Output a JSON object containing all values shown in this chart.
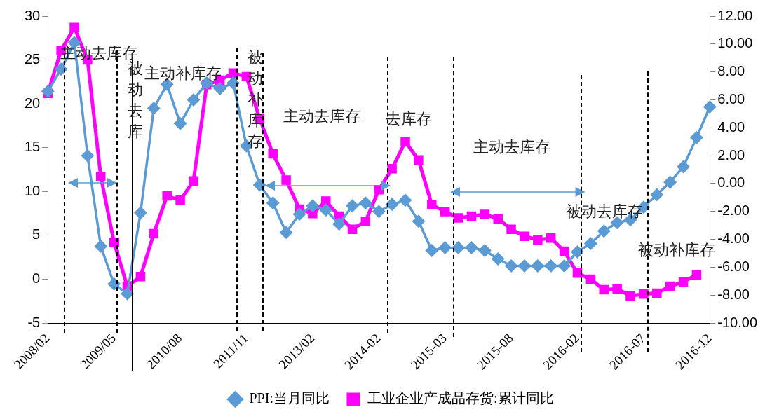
{
  "chart_data": {
    "type": "line",
    "categories": [
      "2008/02",
      null,
      null,
      null,
      null,
      "2009/05",
      null,
      null,
      null,
      null,
      "2010/08",
      null,
      null,
      null,
      null,
      "2011/11",
      null,
      null,
      null,
      null,
      "2013/02",
      null,
      null,
      null,
      null,
      "2014-02",
      null,
      null,
      null,
      null,
      "2015-03",
      null,
      null,
      null,
      null,
      "2015-08",
      null,
      null,
      null,
      null,
      "2016-02",
      null,
      null,
      null,
      null,
      "2016-07",
      null,
      null,
      null,
      null,
      "2016-12"
    ],
    "series": [
      {
        "name": "工业企业产成品存货:累计同比",
        "color": "#ff00ff",
        "marker": "square",
        "values": [
          21.2,
          26.1,
          28.7,
          25.0,
          11.7,
          4.2,
          -0.8,
          0.3,
          5.2,
          9.5,
          9.0,
          11.2,
          22.2,
          22.7,
          23.5,
          23.1,
          18.3,
          14.3,
          11.3,
          8.0,
          7.5,
          8.9,
          7.2,
          5.7,
          6.6,
          10.2,
          12.6,
          15.7,
          13.6,
          8.5,
          7.7,
          7.0,
          7.2,
          7.4,
          6.9,
          5.7,
          4.9,
          4.5,
          4.7,
          3.2,
          0.7,
          0.0,
          -1.2,
          -1.1,
          -1.9,
          -1.7,
          -1.6,
          -0.8,
          -0.3,
          0.5,
          null
        ]
      },
      {
        "name": "PPI:当月同比",
        "color": "#5b9bd5",
        "marker": "diamond",
        "axis": "y2",
        "values": [
          6.6,
          8.2,
          10.1,
          2.0,
          -4.5,
          -7.2,
          -7.9,
          -2.1,
          5.4,
          7.1,
          4.3,
          6.0,
          7.2,
          6.8,
          7.2,
          2.7,
          -0.1,
          -1.4,
          -3.5,
          -2.2,
          -1.6,
          -1.9,
          -2.9,
          -1.6,
          -1.4,
          -2.0,
          -1.5,
          -1.2,
          -2.7,
          -4.8,
          -4.6,
          -4.6,
          -4.6,
          -4.8,
          -5.4,
          -5.9,
          -5.9,
          -5.9,
          -5.9,
          -5.9,
          -4.9,
          -4.3,
          -3.4,
          -2.8,
          -2.6,
          -1.7,
          -0.8,
          0.1,
          1.2,
          3.3,
          5.5
        ]
      }
    ],
    "ylim": [
      -5,
      30
    ],
    "yticks": [
      -5,
      0,
      5,
      10,
      15,
      20,
      25,
      30
    ],
    "y2lim": [
      -10,
      12
    ],
    "y2ticks": [
      {
        "value": -10,
        "label": "-10.00"
      },
      {
        "value": -8,
        "label": "-8.00"
      },
      {
        "value": -6,
        "label": "-6.00"
      },
      {
        "value": -4,
        "label": "-4.00"
      },
      {
        "value": -2,
        "label": "-2.00"
      },
      {
        "value": 0,
        "label": "0.00"
      },
      {
        "value": 2,
        "label": "2.00"
      },
      {
        "value": 4,
        "label": "4.00"
      },
      {
        "value": 6,
        "label": "6.00"
      },
      {
        "value": 8,
        "label": "8.00"
      },
      {
        "value": 10,
        "label": "10.00"
      },
      {
        "value": 12,
        "label": "12.00"
      }
    ],
    "grid": false,
    "legend": "bottom",
    "annotations": [
      "主动去库存",
      "被动去库",
      "主动补库存",
      "被动补库存",
      "主动去库存",
      "去库存",
      "主动去库存",
      "被动去库存",
      "被动补库存"
    ]
  }
}
